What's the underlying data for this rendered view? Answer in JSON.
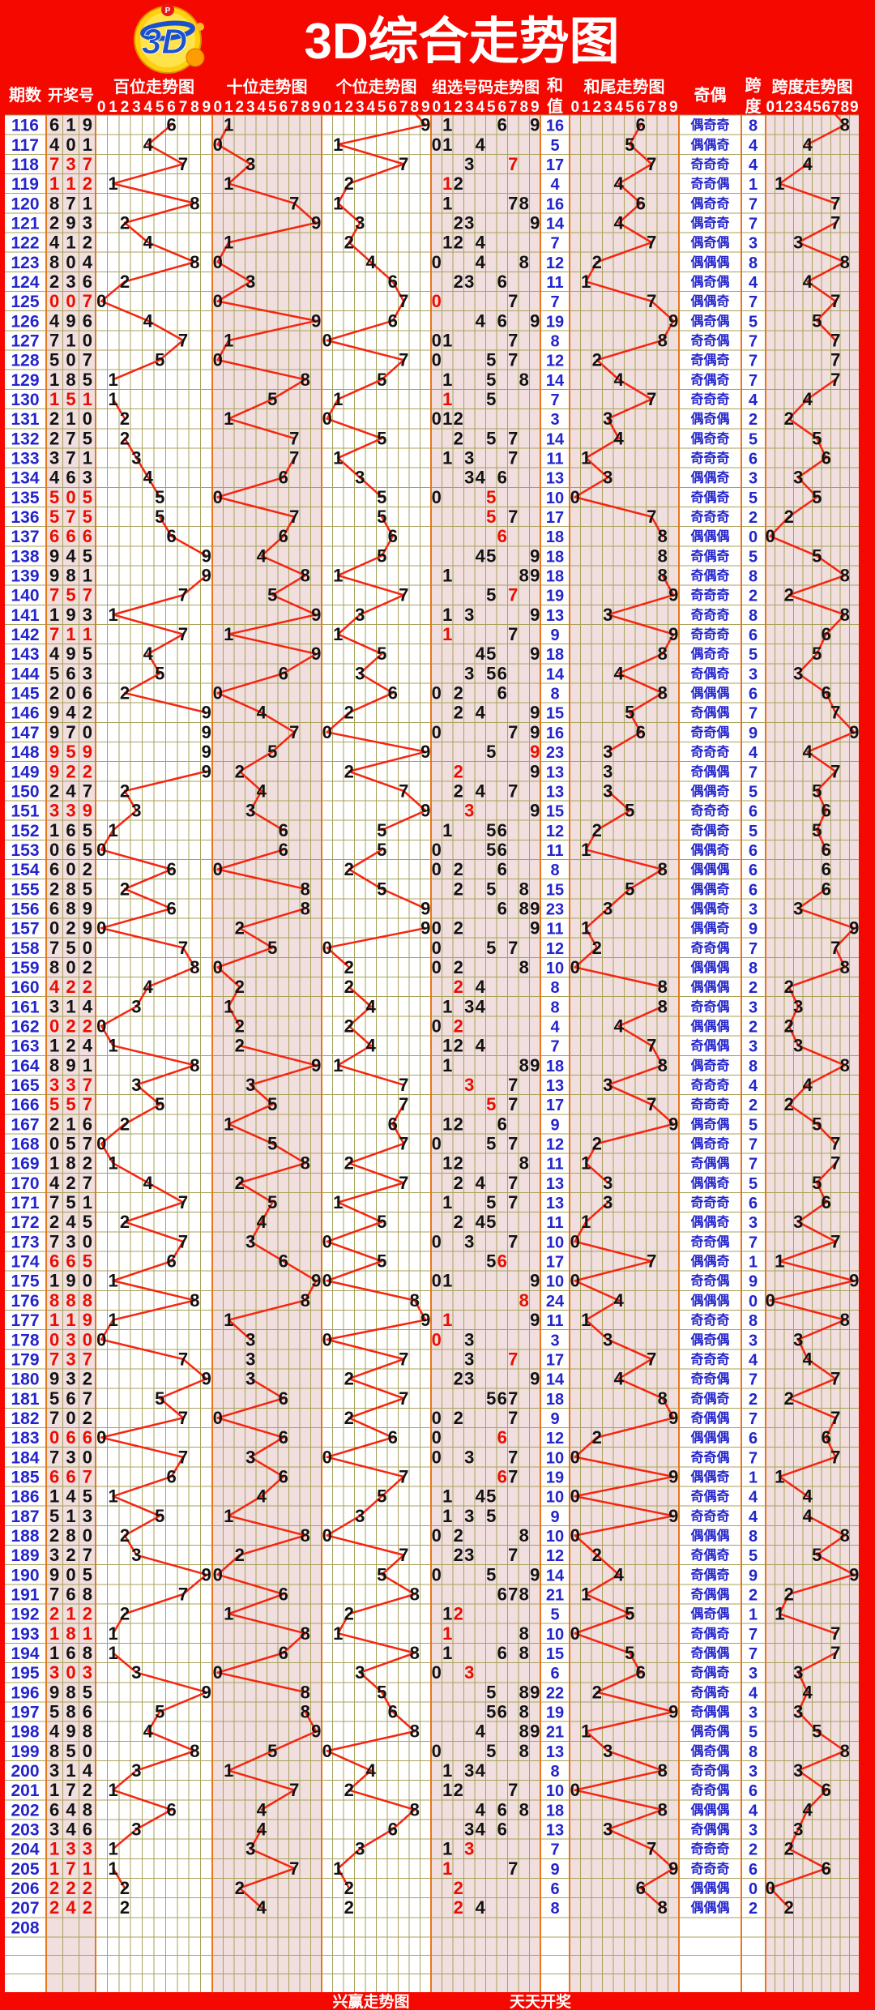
{
  "app": {
    "title": "3D综合走势图"
  },
  "logo": {
    "text": "3D",
    "badge": "P"
  },
  "header": {
    "period": "期数",
    "number": "开奖号",
    "hundreds": "百位走势图",
    "tens": "十位走势图",
    "units": "个位走势图",
    "group_select": "组选号码走势图",
    "sum_char_top": "和",
    "sum_char_bottom": "值",
    "sum_tail": "和尾走势图",
    "odd_even": "奇偶",
    "span_char_top": "跨",
    "span_char_bottom": "度",
    "span_chart": "跨度走势图",
    "digits": "0123456789"
  },
  "footer": {
    "brand": "兴赢走势图",
    "slogan": "天天开奖"
  },
  "legend": {
    "odd": "奇",
    "even": "偶"
  },
  "colors": {
    "page_red": "#f50800",
    "pink_band": "#f1dede",
    "grid_olive": "#a8a25c",
    "grid_orange": "#e5771d",
    "line_red": "#f52510",
    "text_blue": "#2424cc",
    "text_red": "#e90e00",
    "text_black": "#121212",
    "white": "#ffffff"
  },
  "chart_data": {
    "type": "table",
    "title": "3D综合走势图",
    "columns": [
      "期数",
      "开奖号",
      "百位走势图",
      "十位走势图",
      "个位走势图",
      "组选号码走势图",
      "和值",
      "和尾走势图",
      "奇偶",
      "跨度",
      "跨度走势图"
    ],
    "rows": [
      [
        "116",
        "619",
        16,
        6,
        8,
        "偶奇奇"
      ],
      [
        "117",
        "401",
        5,
        5,
        4,
        "偶偶奇"
      ],
      [
        "118",
        "737",
        17,
        7,
        4,
        "奇奇奇"
      ],
      [
        "119",
        "112",
        4,
        4,
        1,
        "奇奇偶"
      ],
      [
        "120",
        "871",
        16,
        6,
        7,
        "偶奇奇"
      ],
      [
        "121",
        "293",
        14,
        4,
        7,
        "偶奇奇"
      ],
      [
        "122",
        "412",
        7,
        7,
        3,
        "偶奇偶"
      ],
      [
        "123",
        "804",
        12,
        2,
        8,
        "偶偶偶"
      ],
      [
        "124",
        "236",
        11,
        1,
        4,
        "偶奇偶"
      ],
      [
        "125",
        "007",
        7,
        7,
        7,
        "偶偶奇"
      ],
      [
        "126",
        "496",
        19,
        9,
        5,
        "偶奇偶"
      ],
      [
        "127",
        "710",
        8,
        8,
        7,
        "奇奇偶"
      ],
      [
        "128",
        "507",
        12,
        2,
        7,
        "奇偶奇"
      ],
      [
        "129",
        "185",
        14,
        4,
        7,
        "奇偶奇"
      ],
      [
        "130",
        "151",
        7,
        7,
        4,
        "奇奇奇"
      ],
      [
        "131",
        "210",
        3,
        3,
        2,
        "偶奇偶"
      ],
      [
        "132",
        "275",
        14,
        4,
        5,
        "偶奇奇"
      ],
      [
        "133",
        "371",
        11,
        1,
        6,
        "奇奇奇"
      ],
      [
        "134",
        "463",
        13,
        3,
        3,
        "偶偶奇"
      ],
      [
        "135",
        "505",
        10,
        0,
        5,
        "奇偶奇"
      ],
      [
        "136",
        "575",
        17,
        7,
        2,
        "奇奇奇"
      ],
      [
        "137",
        "666",
        18,
        8,
        0,
        "偶偶偶"
      ],
      [
        "138",
        "945",
        18,
        8,
        5,
        "奇偶奇"
      ],
      [
        "139",
        "981",
        18,
        8,
        8,
        "奇偶奇"
      ],
      [
        "140",
        "757",
        19,
        9,
        2,
        "奇奇奇"
      ],
      [
        "141",
        "193",
        13,
        3,
        8,
        "奇奇奇"
      ],
      [
        "142",
        "711",
        9,
        9,
        6,
        "奇奇奇"
      ],
      [
        "143",
        "495",
        18,
        8,
        5,
        "偶奇奇"
      ],
      [
        "144",
        "563",
        14,
        4,
        3,
        "奇偶奇"
      ],
      [
        "145",
        "206",
        8,
        8,
        6,
        "偶偶偶"
      ],
      [
        "146",
        "942",
        15,
        5,
        7,
        "奇偶偶"
      ],
      [
        "147",
        "970",
        16,
        6,
        9,
        "奇奇偶"
      ],
      [
        "148",
        "959",
        23,
        3,
        4,
        "奇奇奇"
      ],
      [
        "149",
        "922",
        13,
        3,
        7,
        "奇偶偶"
      ],
      [
        "150",
        "247",
        13,
        3,
        5,
        "偶偶奇"
      ],
      [
        "151",
        "339",
        15,
        5,
        6,
        "奇奇奇"
      ],
      [
        "152",
        "165",
        12,
        2,
        5,
        "奇偶奇"
      ],
      [
        "153",
        "065",
        11,
        1,
        6,
        "偶偶奇"
      ],
      [
        "154",
        "602",
        8,
        8,
        6,
        "偶偶偶"
      ],
      [
        "155",
        "285",
        15,
        5,
        6,
        "偶偶奇"
      ],
      [
        "156",
        "689",
        23,
        3,
        3,
        "偶偶奇"
      ],
      [
        "157",
        "029",
        11,
        1,
        9,
        "偶偶奇"
      ],
      [
        "158",
        "750",
        12,
        2,
        7,
        "奇奇偶"
      ],
      [
        "159",
        "802",
        10,
        0,
        8,
        "偶偶偶"
      ],
      [
        "160",
        "422",
        8,
        8,
        2,
        "偶偶偶"
      ],
      [
        "161",
        "314",
        8,
        8,
        3,
        "奇奇偶"
      ],
      [
        "162",
        "022",
        4,
        4,
        2,
        "偶偶偶"
      ],
      [
        "163",
        "124",
        7,
        7,
        3,
        "奇偶偶"
      ],
      [
        "164",
        "891",
        18,
        8,
        8,
        "偶奇奇"
      ],
      [
        "165",
        "337",
        13,
        3,
        4,
        "奇奇奇"
      ],
      [
        "166",
        "557",
        17,
        7,
        2,
        "奇奇奇"
      ],
      [
        "167",
        "216",
        9,
        9,
        5,
        "偶奇偶"
      ],
      [
        "168",
        "057",
        12,
        2,
        7,
        "偶奇奇"
      ],
      [
        "169",
        "182",
        11,
        1,
        7,
        "奇偶偶"
      ],
      [
        "170",
        "427",
        13,
        3,
        5,
        "偶偶奇"
      ],
      [
        "171",
        "751",
        13,
        3,
        6,
        "奇奇奇"
      ],
      [
        "172",
        "245",
        11,
        1,
        3,
        "偶偶奇"
      ],
      [
        "173",
        "730",
        10,
        0,
        7,
        "奇奇偶"
      ],
      [
        "174",
        "665",
        17,
        7,
        1,
        "偶偶奇"
      ],
      [
        "175",
        "190",
        10,
        0,
        9,
        "奇奇偶"
      ],
      [
        "176",
        "888",
        24,
        4,
        0,
        "偶偶偶"
      ],
      [
        "177",
        "119",
        11,
        1,
        8,
        "奇奇奇"
      ],
      [
        "178",
        "030",
        3,
        3,
        3,
        "偶奇偶"
      ],
      [
        "179",
        "737",
        17,
        7,
        4,
        "奇奇奇"
      ],
      [
        "180",
        "932",
        14,
        4,
        7,
        "奇奇偶"
      ],
      [
        "181",
        "567",
        18,
        8,
        2,
        "奇偶奇"
      ],
      [
        "182",
        "702",
        9,
        9,
        7,
        "奇偶偶"
      ],
      [
        "183",
        "066",
        12,
        2,
        6,
        "偶偶偶"
      ],
      [
        "184",
        "730",
        10,
        0,
        7,
        "奇奇偶"
      ],
      [
        "185",
        "667",
        19,
        9,
        1,
        "偶偶奇"
      ],
      [
        "186",
        "145",
        10,
        0,
        4,
        "奇偶奇"
      ],
      [
        "187",
        "513",
        9,
        9,
        4,
        "奇奇奇"
      ],
      [
        "188",
        "280",
        10,
        0,
        8,
        "偶偶偶"
      ],
      [
        "189",
        "327",
        12,
        2,
        5,
        "奇偶奇"
      ],
      [
        "190",
        "905",
        14,
        4,
        9,
        "奇偶奇"
      ],
      [
        "191",
        "768",
        21,
        1,
        2,
        "奇偶偶"
      ],
      [
        "192",
        "212",
        5,
        5,
        1,
        "偶奇偶"
      ],
      [
        "193",
        "181",
        10,
        0,
        7,
        "奇偶奇"
      ],
      [
        "194",
        "168",
        15,
        5,
        7,
        "奇偶偶"
      ],
      [
        "195",
        "303",
        6,
        6,
        3,
        "奇偶奇"
      ],
      [
        "196",
        "985",
        22,
        2,
        4,
        "奇偶奇"
      ],
      [
        "197",
        "586",
        19,
        9,
        3,
        "奇偶偶"
      ],
      [
        "198",
        "498",
        21,
        1,
        5,
        "偶奇偶"
      ],
      [
        "199",
        "850",
        13,
        3,
        8,
        "偶奇偶"
      ],
      [
        "200",
        "314",
        8,
        8,
        3,
        "奇奇偶"
      ],
      [
        "201",
        "172",
        10,
        0,
        6,
        "奇奇偶"
      ],
      [
        "202",
        "648",
        18,
        8,
        4,
        "偶偶偶"
      ],
      [
        "203",
        "346",
        13,
        3,
        3,
        "奇偶偶"
      ],
      [
        "204",
        "133",
        7,
        7,
        2,
        "奇奇奇"
      ],
      [
        "205",
        "171",
        9,
        9,
        6,
        "奇奇奇"
      ],
      [
        "206",
        "222",
        6,
        6,
        0,
        "偶偶偶"
      ],
      [
        "207",
        "242",
        8,
        8,
        2,
        "偶偶偶"
      ],
      [
        "208",
        "",
        null,
        null,
        null,
        ""
      ]
    ]
  }
}
